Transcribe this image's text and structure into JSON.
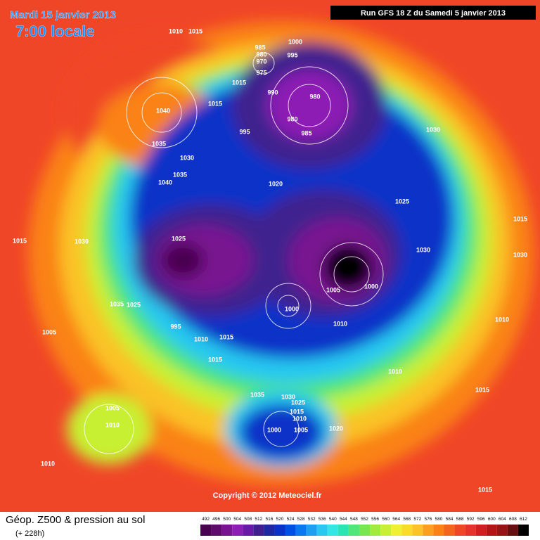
{
  "header": {
    "date": "Mardi 15 janvier 2013",
    "time": "7:00 locale",
    "run": "Run GFS 18 Z du Samedi 5 janvier 2013"
  },
  "map": {
    "isobar_labels": [
      1010,
      1015,
      985,
      980,
      970,
      975,
      995,
      1000,
      1015,
      1015,
      990,
      980,
      980,
      985,
      1040,
      1035,
      1030,
      1035,
      1040,
      995,
      1020,
      1030,
      1025,
      1030,
      1015,
      1030,
      1025,
      1005,
      1000,
      1015,
      1030,
      1035,
      1025,
      1005,
      995,
      1010,
      1015,
      1000,
      1010,
      1010,
      1015,
      1035,
      1030,
      1025,
      1015,
      1010,
      1005,
      1000,
      1020,
      1010,
      1005,
      1010,
      1015,
      1015,
      1010
    ]
  },
  "copyright": "Copyright © 2012 Meteociel.fr",
  "legend": {
    "title": "Géop. Z500 & pression au sol",
    "lead": "(+ 228h)",
    "levels": [
      492,
      496,
      500,
      504,
      508,
      512,
      516,
      520,
      524,
      528,
      532,
      536,
      540,
      544,
      548,
      552,
      556,
      560,
      564,
      568,
      572,
      576,
      580,
      584,
      588,
      592,
      596,
      600,
      604,
      608,
      612
    ],
    "colors": [
      "#4a0050",
      "#600a6e",
      "#781490",
      "#8c1eb4",
      "#6a18a6",
      "#40208e",
      "#1e28a0",
      "#0a32c8",
      "#0050e6",
      "#0a78f0",
      "#1ea0f0",
      "#28c8f0",
      "#32e6e6",
      "#28e6b4",
      "#50e678",
      "#78e650",
      "#a0eb3c",
      "#c8f032",
      "#f0f032",
      "#fadc28",
      "#fac328",
      "#faa01e",
      "#fa8214",
      "#f5641e",
      "#f04628",
      "#e63228",
      "#d21e1e",
      "#b41414",
      "#961414",
      "#641010",
      "#000000"
    ]
  }
}
